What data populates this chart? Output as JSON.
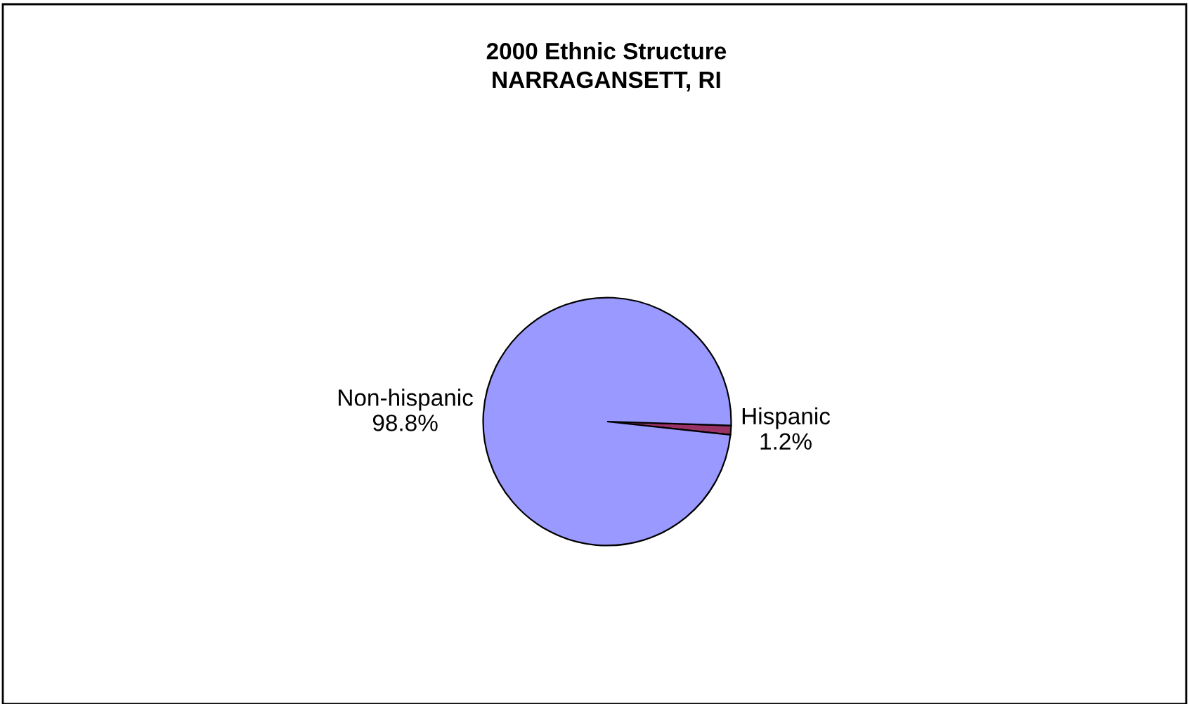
{
  "chart_data": {
    "type": "pie",
    "title": "2000 Ethnic Structure\nNARRAGANSETT, RI",
    "categories": [
      "Hispanic",
      "Non-hispanic"
    ],
    "values": [
      1.2,
      98.8
    ],
    "colors": [
      "#993366",
      "#9999ff"
    ],
    "value_labels": [
      "1.2%",
      "98.8%"
    ],
    "legend": false
  }
}
